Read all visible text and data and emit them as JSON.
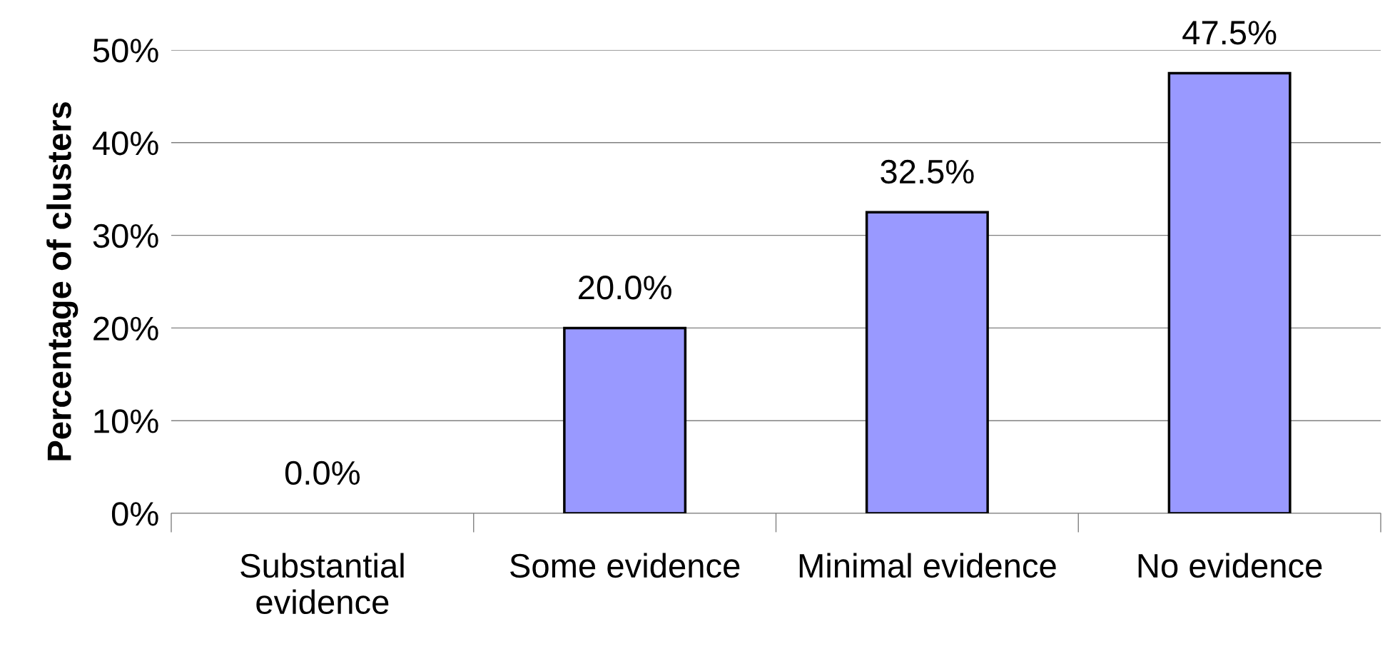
{
  "chart_data": {
    "type": "bar",
    "ylabel": "Percentage of clusters",
    "categories": [
      "Substantial\nevidence",
      "Some evidence",
      "Minimal evidence",
      "No evidence"
    ],
    "values": [
      0.0,
      20.0,
      32.5,
      47.5
    ],
    "value_labels": [
      "0.0%",
      "20.0%",
      "32.5%",
      "47.5%"
    ],
    "color": "#9999ff",
    "ylim": [
      0,
      50
    ],
    "yticks": [
      {
        "value": 0,
        "label": "0%"
      },
      {
        "value": 10,
        "label": "10%"
      },
      {
        "value": 20,
        "label": "20%"
      },
      {
        "value": 30,
        "label": "30%"
      },
      {
        "value": 40,
        "label": "40%"
      },
      {
        "value": 50,
        "label": "50%"
      }
    ],
    "grid": "y"
  }
}
